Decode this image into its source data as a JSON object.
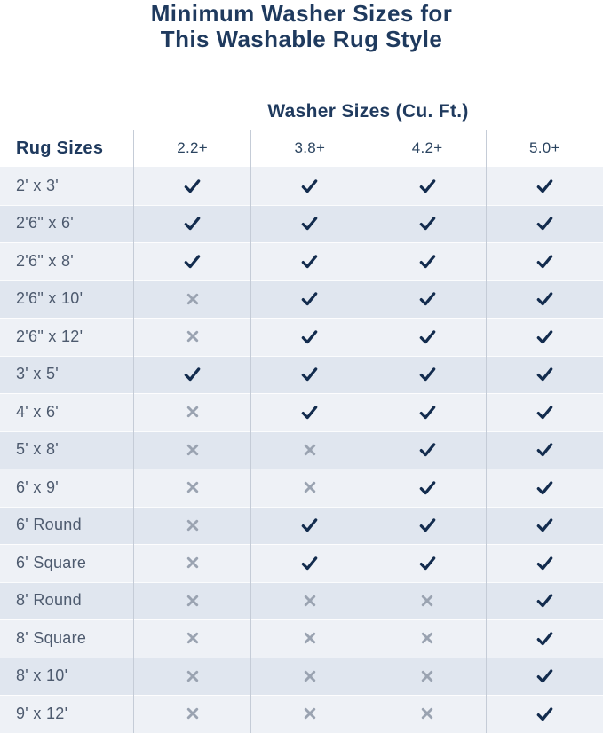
{
  "title": {
    "line1": "Minimum Washer Sizes for",
    "line2": "This Washable Rug Style"
  },
  "chart_data": {
    "type": "table",
    "title": "Minimum Washer Sizes for This Washable Rug Style",
    "group_header": "Washer Sizes (Cu. Ft.)",
    "row_header": "Rug Sizes",
    "columns": [
      "2.2+",
      "3.8+",
      "4.2+",
      "5.0+"
    ],
    "rows": [
      {
        "label": "2' x 3'",
        "values": [
          true,
          true,
          true,
          true
        ]
      },
      {
        "label": "2'6\" x 6'",
        "values": [
          true,
          true,
          true,
          true
        ]
      },
      {
        "label": "2'6\" x 8'",
        "values": [
          true,
          true,
          true,
          true
        ]
      },
      {
        "label": "2'6\" x 10'",
        "values": [
          false,
          true,
          true,
          true
        ]
      },
      {
        "label": "2'6\" x 12'",
        "values": [
          false,
          true,
          true,
          true
        ]
      },
      {
        "label": "3' x 5'",
        "values": [
          true,
          true,
          true,
          true
        ]
      },
      {
        "label": "4' x 6'",
        "values": [
          false,
          true,
          true,
          true
        ]
      },
      {
        "label": "5' x 8'",
        "values": [
          false,
          false,
          true,
          true
        ]
      },
      {
        "label": "6' x 9'",
        "values": [
          false,
          false,
          true,
          true
        ]
      },
      {
        "label": "6' Round",
        "values": [
          false,
          true,
          true,
          true
        ]
      },
      {
        "label": "6' Square",
        "values": [
          false,
          true,
          true,
          true
        ]
      },
      {
        "label": "8' Round",
        "values": [
          false,
          false,
          false,
          true
        ]
      },
      {
        "label": "8' Square",
        "values": [
          false,
          false,
          false,
          true
        ]
      },
      {
        "label": "8' x 10'",
        "values": [
          false,
          false,
          false,
          true
        ]
      },
      {
        "label": "9' x 12'",
        "values": [
          false,
          false,
          false,
          true
        ]
      }
    ],
    "mark_true": "check",
    "mark_false": "cross"
  },
  "colors": {
    "title_navy": "#1f3a5e",
    "header_navy": "#2b4460",
    "label_slate": "#4d5a6e",
    "check_navy": "#132c4e",
    "cross_gray": "#9aa3b1",
    "row_light": "#eef1f6",
    "row_dark": "#e0e6ef",
    "divider": "#c5ccd7",
    "page_bg": "#ffffff"
  }
}
